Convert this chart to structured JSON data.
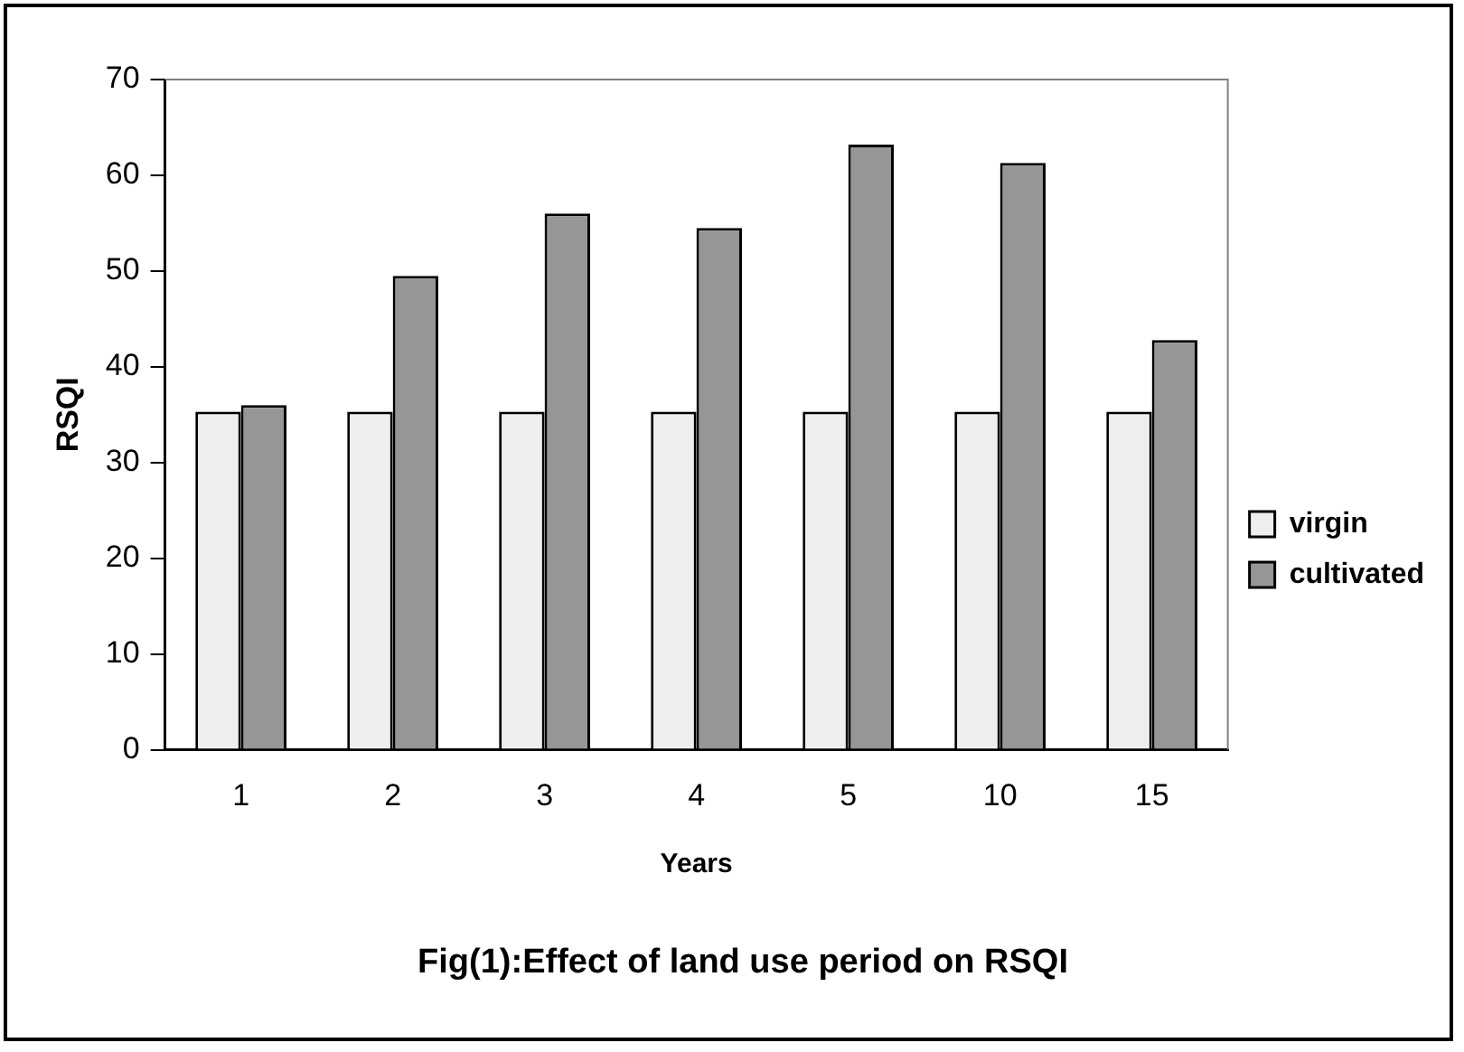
{
  "chart_data": {
    "type": "bar",
    "title": "Fig(1):Effect of land use period on RSQI",
    "xlabel": "Years",
    "ylabel": "RSQI",
    "categories": [
      "1",
      "2",
      "3",
      "4",
      "5",
      "10",
      "15"
    ],
    "series": [
      {
        "name": "virgin",
        "color": "#eeeeee",
        "values": [
          35.3,
          35.3,
          35.3,
          35.3,
          35.3,
          35.3,
          35.3
        ]
      },
      {
        "name": "cultivated",
        "color": "#969696",
        "values": [
          36.0,
          49.5,
          56.0,
          54.5,
          63.2,
          61.3,
          42.8
        ]
      }
    ],
    "ylim": [
      0,
      70
    ],
    "yticks": [
      0,
      10,
      20,
      30,
      40,
      50,
      60,
      70
    ],
    "grid": false,
    "legend": "right"
  }
}
